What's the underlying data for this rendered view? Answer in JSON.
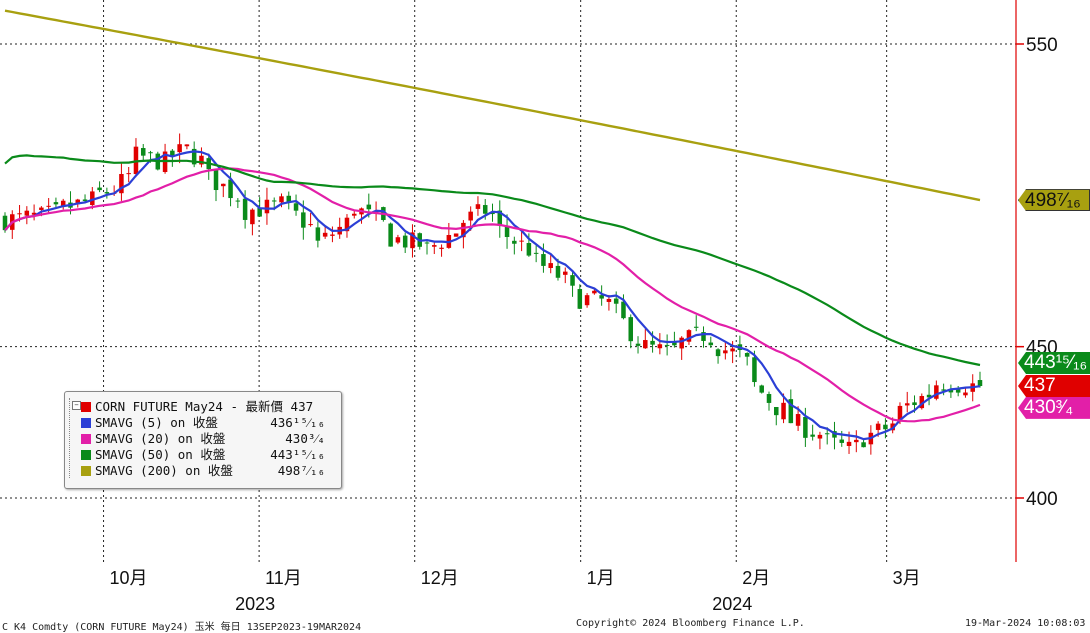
{
  "chart_data": {
    "type": "candlestick",
    "ylim": [
      384,
      563
    ],
    "y_ticks": [
      {
        "value": 550,
        "label": "550"
      },
      {
        "value": 450,
        "label": "450"
      },
      {
        "value": 400,
        "label": "400"
      }
    ],
    "month_ticks": [
      {
        "label": "10月",
        "date": "2023-10-02"
      },
      {
        "label": "11月",
        "date": "2023-11-01"
      },
      {
        "label": "12月",
        "date": "2023-12-01"
      },
      {
        "label": "1月",
        "date": "2024-01-02"
      },
      {
        "label": "2月",
        "date": "2024-02-01"
      },
      {
        "label": "3月",
        "date": "2024-03-01"
      }
    ],
    "year_labels": [
      {
        "label": "2023",
        "date": "2023-11-01"
      },
      {
        "label": "2024",
        "date": "2024-02-01"
      }
    ],
    "ohlc_anchor_closes": [
      [
        "2023-09-13",
        492
      ],
      [
        "2023-09-20",
        493
      ],
      [
        "2023-09-27",
        497
      ],
      [
        "2023-10-04",
        502
      ],
      [
        "2023-10-09",
        513
      ],
      [
        "2023-10-13",
        511
      ],
      [
        "2023-10-18",
        515
      ],
      [
        "2023-10-23",
        506
      ],
      [
        "2023-10-30",
        495
      ],
      [
        "2023-11-06",
        497
      ],
      [
        "2023-11-13",
        484
      ],
      [
        "2023-11-20",
        496
      ],
      [
        "2023-11-27",
        486
      ],
      [
        "2023-12-04",
        482
      ],
      [
        "2023-12-08",
        488
      ],
      [
        "2023-12-14",
        495
      ],
      [
        "2023-12-20",
        485
      ],
      [
        "2023-12-27",
        475
      ],
      [
        "2024-01-02",
        466
      ],
      [
        "2024-01-08",
        464
      ],
      [
        "2024-01-12",
        452
      ],
      [
        "2024-01-18",
        448
      ],
      [
        "2024-01-25",
        454
      ],
      [
        "2024-02-01",
        447
      ],
      [
        "2024-02-08",
        430
      ],
      [
        "2024-02-15",
        422
      ],
      [
        "2024-02-22",
        416
      ],
      [
        "2024-02-29",
        423
      ],
      [
        "2024-03-06",
        432
      ],
      [
        "2024-03-11",
        438
      ],
      [
        "2024-03-19",
        437
      ]
    ],
    "series": [
      {
        "name": "CORN FUTURE May24 - 最新價",
        "color": "#e00000",
        "last": 437,
        "last_label": "437"
      },
      {
        "name": "SMAVG (5) on 收盤",
        "color": "#2b3fd6",
        "last": 436.9375,
        "last_label": "436 15/16"
      },
      {
        "name": "SMAVG (20) on 收盤",
        "color": "#e21fa8",
        "last": 430.75,
        "last_label": "430 3/4"
      },
      {
        "name": "SMAVG (50) on 收盤",
        "color": "#0a8a1a",
        "last": 443.9375,
        "last_label": "443 15/16"
      },
      {
        "name": "SMAVG (200) on 收盤",
        "color": "#a8a010",
        "last": 498.4375,
        "last_label": "498 7/16"
      }
    ]
  },
  "legend": {
    "rows": [
      {
        "name": "CORN FUTURE May24 - 最新價 437",
        "value": "",
        "color": "#e00000"
      },
      {
        "name": "SMAVG (5)  on 收盤",
        "value": "436¹⁵⁄₁₆",
        "color": "#2b3fd6"
      },
      {
        "name": "SMAVG (20)  on 收盤",
        "value": "430³⁄₄",
        "color": "#e21fa8"
      },
      {
        "name": "SMAVG (50)  on 收盤",
        "value": "443¹⁵⁄₁₆",
        "color": "#0a8a1a"
      },
      {
        "name": "SMAVG (200) on 收盤",
        "value": "498⁷⁄₁₆",
        "color": "#a8a010"
      }
    ]
  },
  "price_tags": [
    {
      "text": "498⁷⁄₁₆",
      "value": 498.4375,
      "bg": "#a8a010",
      "fg": "#111111"
    },
    {
      "text": "443¹⁵⁄₁₆",
      "value": 443.9375,
      "bg": "#0a8a1a",
      "fg": "#ffffff"
    },
    {
      "text": "437",
      "value": 437,
      "bg": "#e00000",
      "fg": "#ffffff"
    },
    {
      "text": "430³⁄₄",
      "value": 430.75,
      "bg": "#e21fa8",
      "fg": "#ffffff"
    }
  ],
  "footer": {
    "left": "C K4 Comdty (CORN FUTURE     May24) 玉米  每日 13SEP2023-19MAR2024",
    "center": "Copyright© 2024 Bloomberg Finance L.P.",
    "right": "19-Mar-2024 10:08:03"
  }
}
